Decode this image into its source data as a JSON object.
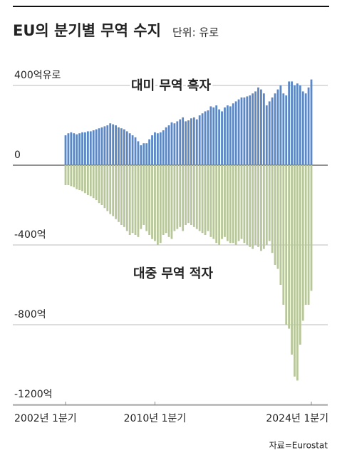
{
  "chart_data": {
    "type": "bar",
    "title": "EU의 분기별 무역 수지",
    "subtitle": "단위: 유로",
    "source": "자료=Eurostat",
    "annotations": [
      "대미 무역 흑자",
      "대중 무역 적자"
    ],
    "categories": [
      "2002년 1분기",
      null,
      null,
      null,
      null,
      null,
      null,
      null,
      null,
      null,
      null,
      null,
      null,
      null,
      null,
      null,
      null,
      null,
      null,
      null,
      null,
      null,
      null,
      null,
      null,
      null,
      null,
      null,
      null,
      null,
      null,
      null,
      "2010년 1분기",
      null,
      null,
      null,
      null,
      null,
      null,
      null,
      null,
      null,
      null,
      null,
      null,
      null,
      null,
      null,
      null,
      null,
      null,
      null,
      null,
      null,
      null,
      null,
      null,
      null,
      null,
      null,
      null,
      null,
      null,
      null,
      null,
      null,
      null,
      null,
      null,
      null,
      null,
      null,
      null,
      null,
      null,
      null,
      null,
      null,
      null,
      null,
      null,
      null,
      null,
      null,
      null,
      null,
      null,
      null,
      "2024년 1분기"
    ],
    "series": [
      {
        "name": "대미 무역 흑자",
        "color": "#5b87c5",
        "values": [
          150,
          160,
          165,
          160,
          155,
          160,
          165,
          165,
          170,
          170,
          175,
          180,
          185,
          190,
          195,
          200,
          210,
          205,
          200,
          190,
          185,
          180,
          170,
          160,
          150,
          140,
          120,
          100,
          110,
          110,
          130,
          150,
          165,
          160,
          165,
          175,
          190,
          200,
          215,
          210,
          220,
          230,
          240,
          220,
          225,
          235,
          240,
          230,
          250,
          260,
          270,
          275,
          295,
          290,
          300,
          280,
          270,
          290,
          300,
          295,
          310,
          320,
          330,
          340,
          340,
          345,
          350,
          360,
          370,
          390,
          380,
          360,
          300,
          320,
          340,
          360,
          380,
          400,
          360,
          350,
          420,
          420,
          400,
          410,
          400,
          370,
          360,
          390,
          430
        ]
      },
      {
        "name": "대중 무역 적자",
        "color": "#b8c79a",
        "values": [
          -100,
          -100,
          -105,
          -110,
          -120,
          -125,
          -130,
          -140,
          -150,
          -155,
          -165,
          -175,
          -190,
          -200,
          -215,
          -230,
          -245,
          -255,
          -270,
          -285,
          -300,
          -310,
          -330,
          -350,
          -340,
          -350,
          -360,
          -320,
          -300,
          -330,
          -350,
          -370,
          -380,
          -400,
          -390,
          -350,
          -340,
          -360,
          -370,
          -330,
          -320,
          -310,
          -330,
          -300,
          -290,
          -300,
          -310,
          -320,
          -330,
          -340,
          -350,
          -330,
          -360,
          -370,
          -390,
          -400,
          -370,
          -360,
          -380,
          -390,
          -390,
          -400,
          -380,
          -370,
          -390,
          -400,
          -410,
          -420,
          -400,
          -410,
          -430,
          -420,
          -400,
          -380,
          -440,
          -500,
          -520,
          -600,
          -700,
          -800,
          -820,
          -950,
          -1060,
          -1080,
          -900,
          -780,
          -700,
          -700,
          -630
        ]
      }
    ],
    "ylim": [
      -1200,
      450
    ],
    "yticks": [
      {
        "value": 400,
        "label": "400억유로"
      },
      0,
      {
        "value": -400,
        "label": "-400억"
      },
      {
        "value": -800,
        "label": "-800억"
      },
      {
        "value": -1200,
        "label": "-1200억"
      }
    ],
    "grid": true
  }
}
